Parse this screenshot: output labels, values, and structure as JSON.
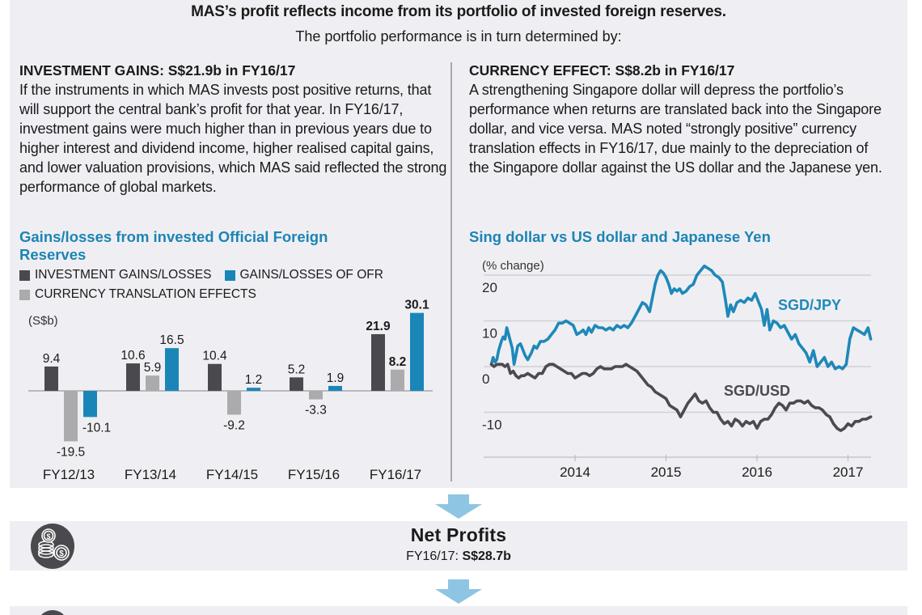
{
  "headline": "MAS’s profit reflects income from its portfolio of invested foreign reserves.",
  "subheadline": "The portfolio performance is in turn determined by:",
  "left_column": {
    "title": "INVESTMENT GAINS: S$21.9b in FY16/17",
    "body": "If the instruments in which MAS invests post positive returns, that will support the central bank’s profit for that year. In FY16/17, investment gains were much higher than in previous years due to higher interest and dividend income, higher realised capital gains, and lower valuation provisions, which MAS said reflected the strong performance of global markets."
  },
  "right_column": {
    "title": "CURRENCY EFFECT: S$8.2b in FY16/17",
    "body": "A strengthening Singapore dollar will depress the portfolio’s performance when returns are translated back into the Singapore dollar, and vice versa. MAS noted “strongly positive” currency translation effects in FY16/17, due mainly to the depreciation of the Singapore dollar against the US dollar and the Japanese yen."
  },
  "colors": {
    "investment": "#4a4a4e",
    "currency": "#ababad",
    "ofr": "#1a86b8",
    "jpy_line": "#1e88ba",
    "usd_line": "#4b4b4f",
    "arrow": "#8ec5e3",
    "panel": "#efeff3"
  },
  "chart_data": [
    {
      "type": "bar",
      "title": "Gains/losses from invested Official Foreign Reserves",
      "ylabel": "(S$b)",
      "xlabel": "",
      "categories": [
        "FY12/13",
        "FY13/14",
        "FY14/15",
        "FY15/16",
        "FY16/17"
      ],
      "series": [
        {
          "name": "INVESTMENT GAINS/LOSSES",
          "color": "#4a4a4e",
          "values": [
            9.4,
            10.6,
            10.4,
            5.2,
            21.9
          ]
        },
        {
          "name": "CURRENCY TRANSLATION EFFECTS",
          "color": "#ababad",
          "values": [
            -19.5,
            5.9,
            -9.2,
            -3.3,
            8.2
          ]
        },
        {
          "name": "GAINS/LOSSES OF OFR",
          "color": "#1a86b8",
          "values": [
            -10.1,
            16.5,
            1.2,
            1.9,
            30.1
          ]
        }
      ],
      "data_labels": [
        [
          "9.4",
          "10.6",
          "10.4",
          "5.2",
          "21.9"
        ],
        [
          "-19.5",
          "5.9",
          "-9.2",
          "-3.3",
          "8.2"
        ],
        [
          "-10.1",
          "16.5",
          "1.2",
          "1.9",
          "30.1"
        ]
      ],
      "bold_category": "FY16/17",
      "legend": [
        "INVESTMENT GAINS/LOSSES",
        "GAINS/LOSSES OF OFR",
        "CURRENCY TRANSLATION EFFECTS"
      ],
      "legend_position": "top-left",
      "ylim": [
        -20,
        32
      ],
      "grid": false
    },
    {
      "type": "line",
      "title": "Sing dollar vs US dollar and Japanese Yen",
      "ylabel": "(% change)",
      "xlabel": "",
      "x_ticks": [
        "2014",
        "2015",
        "2016",
        "2017"
      ],
      "x_range": [
        2013.08,
        2017.25
      ],
      "y_ticks": [
        "20",
        "10",
        "0",
        "-10"
      ],
      "ylim": [
        -16.5,
        20
      ],
      "grid": true,
      "series": [
        {
          "name": "SGD/JPY",
          "color": "#1e88ba",
          "x": [
            2013.08,
            2013.1,
            2013.12,
            2013.14,
            2013.16,
            2013.19,
            2013.21,
            2013.23,
            2013.25,
            2013.27,
            2013.29,
            2013.31,
            2013.33,
            2013.35,
            2013.37,
            2013.4,
            2013.42,
            2013.45,
            2013.48,
            2013.52,
            2013.55,
            2013.58,
            2013.62,
            2013.66,
            2013.7,
            2013.74,
            2013.78,
            2013.82,
            2013.86,
            2013.9,
            2013.94,
            2013.98,
            2014.02,
            2014.06,
            2014.09,
            2014.12,
            2014.15,
            2014.18,
            2014.22,
            2014.26,
            2014.3,
            2014.34,
            2014.38,
            2014.42,
            2014.46,
            2014.5,
            2014.54,
            2014.58,
            2014.62,
            2014.66,
            2014.7,
            2014.74,
            2014.78,
            2014.82,
            2014.85,
            2014.88,
            2014.91,
            2014.94,
            2014.97,
            2015.0,
            2015.03,
            2015.06,
            2015.09,
            2015.12,
            2015.15,
            2015.18,
            2015.22,
            2015.26,
            2015.3,
            2015.34,
            2015.38,
            2015.42,
            2015.46,
            2015.5,
            2015.54,
            2015.58,
            2015.62,
            2015.65,
            2015.68,
            2015.71,
            2015.74,
            2015.78,
            2015.82,
            2015.86,
            2015.9,
            2015.94,
            2015.98,
            2016.02,
            2016.05,
            2016.08,
            2016.11,
            2016.14,
            2016.18,
            2016.22,
            2016.26,
            2016.3,
            2016.34,
            2016.38,
            2016.42,
            2016.46,
            2016.5,
            2016.54,
            2016.58,
            2016.62,
            2016.66,
            2016.7,
            2016.74,
            2016.78,
            2016.82,
            2016.86,
            2016.9,
            2016.94,
            2016.98,
            2017.02,
            2017.06,
            2017.1,
            2017.14,
            2017.18,
            2017.22,
            2017.25
          ],
          "y": [
            0.5,
            2.0,
            1.0,
            1.5,
            3.5,
            5.5,
            6.5,
            6.0,
            8.5,
            7.0,
            5.5,
            4.0,
            0.5,
            2.5,
            4.5,
            5.0,
            4.0,
            2.5,
            1.5,
            3.0,
            4.5,
            4.0,
            5.5,
            5.5,
            6.0,
            7.0,
            8.0,
            9.5,
            9.5,
            10.0,
            9.5,
            9.0,
            7.0,
            7.5,
            8.0,
            7.0,
            8.5,
            7.5,
            9.0,
            8.5,
            8.5,
            8.0,
            8.5,
            8.0,
            9.0,
            8.5,
            9.0,
            8.5,
            9.5,
            11.0,
            12.5,
            14.0,
            13.5,
            12.0,
            15.0,
            18.0,
            20.0,
            21.0,
            20.5,
            19.5,
            18.0,
            16.0,
            17.0,
            16.5,
            17.0,
            16.0,
            16.5,
            17.5,
            18.0,
            20.0,
            21.0,
            22.0,
            21.5,
            21.0,
            20.0,
            19.5,
            18.5,
            15.0,
            11.0,
            13.5,
            12.0,
            14.0,
            14.5,
            14.0,
            15.0,
            14.5,
            16.0,
            14.0,
            12.5,
            9.0,
            12.5,
            8.0,
            10.0,
            9.5,
            8.5,
            9.0,
            7.5,
            6.0,
            7.0,
            5.0,
            4.0,
            3.0,
            1.0,
            3.5,
            0.0,
            1.0,
            2.0,
            0.0,
            1.0,
            -0.5,
            0.0,
            -0.5,
            0.5,
            6.0,
            8.5,
            8.0,
            7.5,
            7.0,
            8.5,
            6.0
          ]
        },
        {
          "name": "SGD/USD",
          "color": "#4b4b4f",
          "x": [
            2013.08,
            2013.11,
            2013.14,
            2013.17,
            2013.2,
            2013.23,
            2013.26,
            2013.29,
            2013.32,
            2013.35,
            2013.38,
            2013.41,
            2013.44,
            2013.48,
            2013.52,
            2013.56,
            2013.6,
            2013.64,
            2013.68,
            2013.72,
            2013.76,
            2013.8,
            2013.84,
            2013.88,
            2013.92,
            2013.96,
            2014.0,
            2014.04,
            2014.08,
            2014.12,
            2014.16,
            2014.2,
            2014.24,
            2014.28,
            2014.32,
            2014.36,
            2014.4,
            2014.44,
            2014.48,
            2014.52,
            2014.56,
            2014.6,
            2014.64,
            2014.68,
            2014.72,
            2014.76,
            2014.8,
            2014.84,
            2014.88,
            2014.92,
            2014.96,
            2015.0,
            2015.04,
            2015.08,
            2015.12,
            2015.16,
            2015.2,
            2015.24,
            2015.28,
            2015.32,
            2015.36,
            2015.4,
            2015.44,
            2015.48,
            2015.52,
            2015.56,
            2015.6,
            2015.64,
            2015.68,
            2015.72,
            2015.76,
            2015.8,
            2015.84,
            2015.88,
            2015.92,
            2015.96,
            2016.0,
            2016.04,
            2016.08,
            2016.12,
            2016.16,
            2016.2,
            2016.24,
            2016.28,
            2016.32,
            2016.36,
            2016.4,
            2016.44,
            2016.48,
            2016.52,
            2016.56,
            2016.6,
            2016.64,
            2016.68,
            2016.72,
            2016.76,
            2016.8,
            2016.84,
            2016.88,
            2016.92,
            2016.96,
            2017.0,
            2017.04,
            2017.08,
            2017.12,
            2017.16,
            2017.2,
            2017.25
          ],
          "y": [
            0.5,
            0.0,
            0.5,
            0.5,
            0.5,
            0.0,
            0.5,
            -1.5,
            -1.0,
            -2.0,
            -2.5,
            -2.0,
            -2.0,
            -1.5,
            -2.0,
            -2.5,
            -1.5,
            -1.5,
            0.0,
            0.5,
            0.5,
            0.0,
            -0.5,
            -1.0,
            -1.5,
            -1.5,
            -2.5,
            -2.0,
            -1.5,
            -1.5,
            -2.0,
            -1.5,
            -0.5,
            0.0,
            -0.5,
            -0.5,
            -0.5,
            0.0,
            0.0,
            0.0,
            0.5,
            0.0,
            -0.5,
            -1.0,
            -2.0,
            -3.0,
            -4.0,
            -4.5,
            -5.5,
            -6.0,
            -6.5,
            -7.0,
            -8.5,
            -9.0,
            -9.5,
            -11.0,
            -9.5,
            -8.0,
            -7.0,
            -6.0,
            -7.5,
            -8.0,
            -7.5,
            -9.0,
            -10.0,
            -10.0,
            -11.5,
            -12.5,
            -12.0,
            -13.0,
            -11.5,
            -12.0,
            -13.0,
            -12.0,
            -12.5,
            -12.0,
            -13.5,
            -12.0,
            -11.5,
            -11.5,
            -10.5,
            -9.0,
            -8.0,
            -8.5,
            -9.5,
            -8.0,
            -8.0,
            -7.5,
            -7.5,
            -8.0,
            -7.5,
            -8.5,
            -9.0,
            -9.0,
            -9.5,
            -10.5,
            -11.0,
            -12.5,
            -13.5,
            -14.0,
            -13.5,
            -12.5,
            -13.0,
            -12.0,
            -12.0,
            -11.5,
            -11.5,
            -11.0
          ]
        }
      ],
      "annotations": [
        {
          "text": "SGD/JPY",
          "series": "SGD/JPY"
        },
        {
          "text": "SGD/USD",
          "series": "SGD/USD"
        }
      ]
    }
  ],
  "net_profits": {
    "title": "Net Profits",
    "label_prefix": "FY16/17: ",
    "value": "S$28.7b"
  },
  "icons": {
    "coins": "coins-icon",
    "arrow": "arrow-down-icon"
  }
}
